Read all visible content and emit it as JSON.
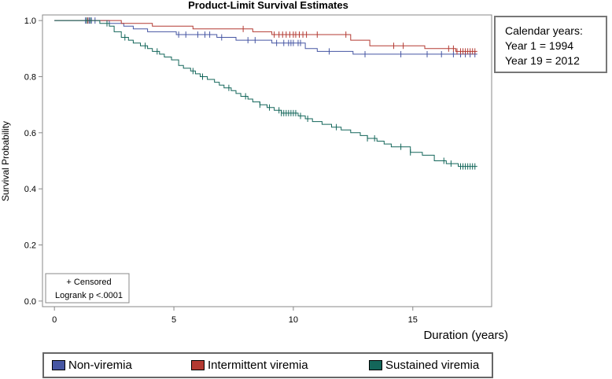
{
  "chart_data": {
    "type": "line",
    "step": true,
    "title": "Product-Limit Survival Estimates",
    "xlabel": "Duration (years)",
    "ylabel": "Survival Probability",
    "xlim": [
      -0.5,
      18.3
    ],
    "ylim": [
      -0.02,
      1.02
    ],
    "xticks": [
      0,
      5,
      10,
      15
    ],
    "yticks": [
      0.0,
      0.2,
      0.4,
      0.6,
      0.8,
      1.0
    ],
    "ytick_labels": [
      "0.0",
      "0.2",
      "0.4",
      "0.6",
      "0.8",
      "1.0"
    ],
    "grid": false,
    "legend_position": "bottom",
    "series": [
      {
        "name": "Non-viremia",
        "color": "#4656a3",
        "x": [
          0,
          2.3,
          2.9,
          3.3,
          3.9,
          5.1,
          6.8,
          7.6,
          9.1,
          10.5,
          11.0,
          12.5
        ],
        "y": [
          1.0,
          0.99,
          0.98,
          0.97,
          0.96,
          0.95,
          0.94,
          0.93,
          0.92,
          0.9,
          0.89,
          0.88
        ],
        "end_x": 17.7,
        "censor_x": [
          1.3,
          1.45,
          1.55,
          1.7,
          5.2,
          5.5,
          6.0,
          6.3,
          6.5,
          7.0,
          8.1,
          8.4,
          9.3,
          9.6,
          9.8,
          9.9,
          10.0,
          10.2,
          10.3,
          11.5,
          13.0,
          14.5,
          15.6,
          16.2,
          16.7,
          17.0,
          17.2,
          17.4,
          17.6
        ]
      },
      {
        "name": "Intermittent viremia",
        "color": "#b33a32",
        "x": [
          0,
          2.8,
          4.1,
          5.8,
          8.3,
          9.1,
          12.4,
          13.2,
          15.5,
          16.8
        ],
        "y": [
          1.0,
          0.99,
          0.98,
          0.97,
          0.96,
          0.95,
          0.93,
          0.91,
          0.9,
          0.89
        ],
        "end_x": 17.7,
        "censor_x": [
          1.4,
          7.9,
          9.2,
          9.4,
          9.55,
          9.7,
          9.85,
          10.0,
          10.1,
          10.25,
          10.4,
          10.55,
          11.0,
          12.2,
          14.2,
          14.6,
          16.5,
          16.7,
          16.85,
          17.0,
          17.1,
          17.2,
          17.3,
          17.4,
          17.5,
          17.6
        ]
      },
      {
        "name": "Sustained viremia",
        "color": "#13665a",
        "x": [
          0,
          1.9,
          2.3,
          2.5,
          2.8,
          3.1,
          3.3,
          3.6,
          3.9,
          4.1,
          4.4,
          4.6,
          4.9,
          5.2,
          5.4,
          5.7,
          5.9,
          6.1,
          6.4,
          6.7,
          6.9,
          7.1,
          7.4,
          7.6,
          7.8,
          8.1,
          8.3,
          8.6,
          8.9,
          9.2,
          9.5,
          10.2,
          10.5,
          10.8,
          11.2,
          11.6,
          12.0,
          12.4,
          12.8,
          13.1,
          13.5,
          13.8,
          14.1,
          14.9,
          15.4,
          15.9,
          16.4,
          16.9
        ],
        "y": [
          1.0,
          0.99,
          0.98,
          0.96,
          0.94,
          0.93,
          0.92,
          0.91,
          0.9,
          0.89,
          0.88,
          0.87,
          0.86,
          0.84,
          0.83,
          0.82,
          0.81,
          0.8,
          0.79,
          0.78,
          0.77,
          0.76,
          0.75,
          0.74,
          0.73,
          0.72,
          0.71,
          0.7,
          0.69,
          0.68,
          0.67,
          0.66,
          0.65,
          0.64,
          0.63,
          0.62,
          0.61,
          0.6,
          0.59,
          0.58,
          0.57,
          0.56,
          0.55,
          0.53,
          0.52,
          0.5,
          0.49,
          0.48
        ],
        "end_x": 17.7,
        "censor_x": [
          1.35,
          1.5,
          2.2,
          2.95,
          3.8,
          4.3,
          5.8,
          6.2,
          7.3,
          8.0,
          8.6,
          9.0,
          9.4,
          9.5,
          9.6,
          9.7,
          9.8,
          9.9,
          10.0,
          10.1,
          10.3,
          10.6,
          11.8,
          13.1,
          13.4,
          14.5,
          14.9,
          16.3,
          16.6,
          17.0,
          17.1,
          17.2,
          17.3,
          17.4,
          17.5,
          17.6
        ]
      }
    ]
  },
  "inset": {
    "censored_label": "+ Censored",
    "logrank_label": "Logrank p <.0001"
  },
  "note": {
    "line1": "Calendar years:",
    "line2": "Year 1 = 1994",
    "line3": "Year 19 = 2012"
  },
  "legend": [
    {
      "label": "Non-viremia",
      "color": "#4656a3"
    },
    {
      "label": "Intermittent viremia",
      "color": "#b33a32"
    },
    {
      "label": "Sustained viremia",
      "color": "#13665a"
    }
  ]
}
